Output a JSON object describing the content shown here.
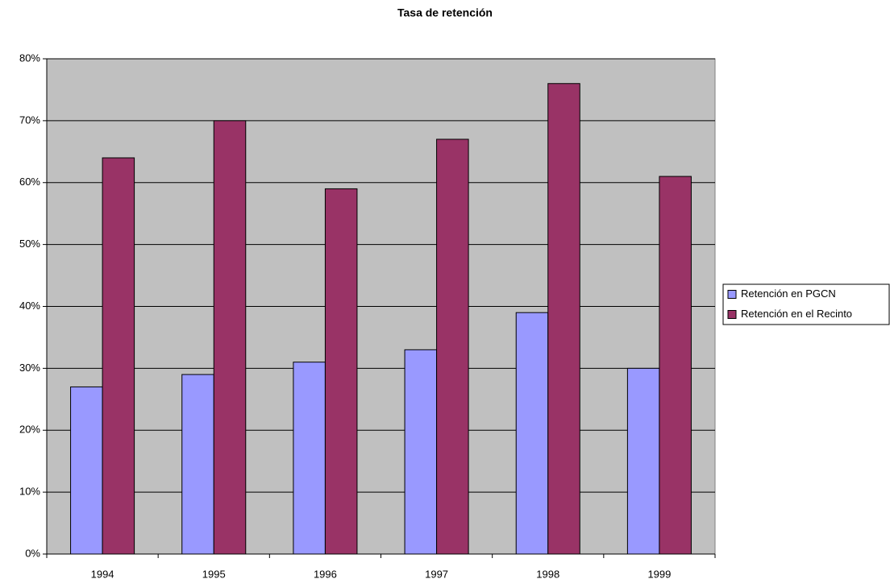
{
  "chart_data": {
    "type": "bar",
    "title": "Tasa de retención",
    "categories": [
      "1994",
      "1995",
      "1996",
      "1997",
      "1998",
      "1999"
    ],
    "series": [
      {
        "name": "Retención en PGCN",
        "color": "#9999ff",
        "values": [
          27,
          29,
          31,
          33,
          39,
          30
        ]
      },
      {
        "name": "Retención en el Recinto",
        "color": "#993366",
        "values": [
          64,
          70,
          59,
          67,
          76,
          61
        ]
      }
    ],
    "ylim": [
      0,
      80
    ],
    "yticks": [
      {
        "value": 0,
        "label": "0%"
      },
      {
        "value": 10,
        "label": "10%"
      },
      {
        "value": 20,
        "label": "20%"
      },
      {
        "value": 30,
        "label": "30%"
      },
      {
        "value": 40,
        "label": "40%"
      },
      {
        "value": 50,
        "label": "50%"
      },
      {
        "value": 60,
        "label": "60%"
      },
      {
        "value": 70,
        "label": "70%"
      },
      {
        "value": 80,
        "label": "80%"
      }
    ],
    "grid": true,
    "legend": "right"
  }
}
